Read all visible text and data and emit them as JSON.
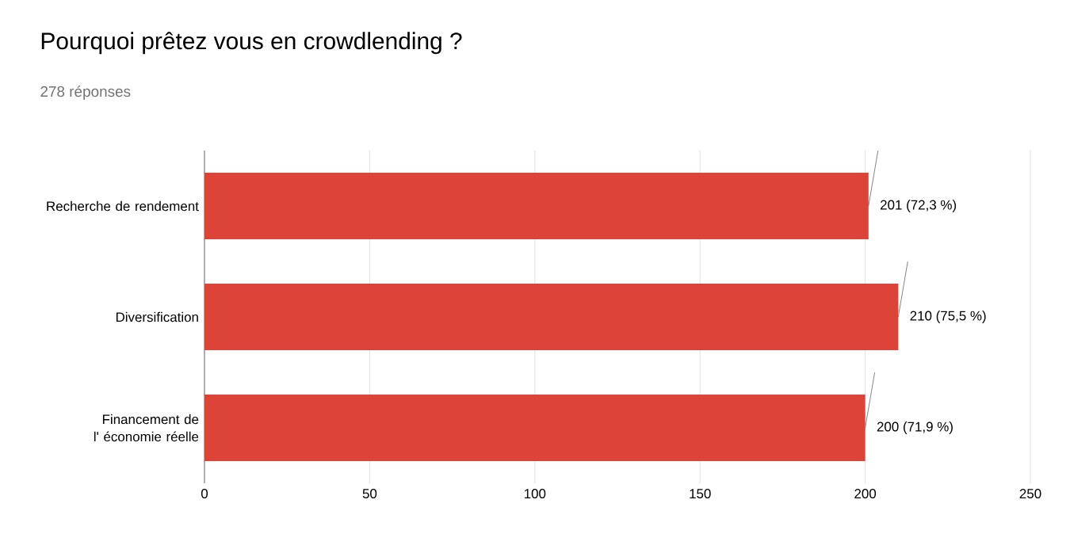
{
  "chart_data": {
    "type": "bar",
    "orientation": "horizontal",
    "title": "Pourquoi prêtez vous en crowdlending ?",
    "subtitle": "278 réponses",
    "categories": [
      "Recherche de rendement",
      "Diversification",
      "Financement de l' économie réelle"
    ],
    "values": [
      201,
      210,
      200
    ],
    "value_labels": [
      "201 (72,3 %)",
      "210 (75,5 %)",
      "200 (71,9 %)"
    ],
    "color": "#db4437",
    "xlim": [
      0,
      250
    ],
    "xticks": [
      0,
      50,
      100,
      150,
      200,
      250
    ],
    "grid": "x"
  }
}
